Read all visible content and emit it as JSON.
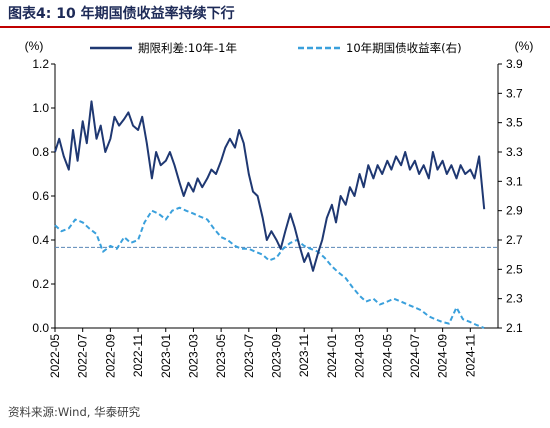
{
  "header": {
    "title": "图表4:  10 年期国债收益率持续下行"
  },
  "footer": {
    "source": "资料来源:Wind, 华泰研究"
  },
  "colors": {
    "series1": "#1f3872",
    "series2": "#3aa0dc",
    "reference": "#5a87b8"
  },
  "chart_data": {
    "type": "line",
    "left_unit": "(%)",
    "right_unit": "(%)",
    "yleft_lim": [
      0.0,
      1.2
    ],
    "yleft_ticks": [
      "0.0",
      "0.2",
      "0.4",
      "0.6",
      "0.8",
      "1.0",
      "1.2"
    ],
    "yright_lim": [
      2.1,
      3.9
    ],
    "yright_ticks": [
      "2.1",
      "2.3",
      "2.5",
      "2.7",
      "2.9",
      "3.1",
      "3.3",
      "3.5",
      "3.7",
      "3.9"
    ],
    "x_range": [
      "2022-05",
      "2024-12"
    ],
    "x_ticks": [
      "2022-05",
      "2022-07",
      "2022-09",
      "2022-11",
      "2023-01",
      "2023-03",
      "2023-05",
      "2023-07",
      "2023-09",
      "2023-11",
      "2024-01",
      "2024-03",
      "2024-05",
      "2024-07",
      "2024-09",
      "2024-11"
    ],
    "reference_line": {
      "axis": "right",
      "value": 2.65
    },
    "series": [
      {
        "name": "期限利差:10年-1年",
        "axis": "left",
        "style": "solid",
        "points": [
          [
            "2022-05-01",
            0.8
          ],
          [
            "2022-05-10",
            0.86
          ],
          [
            "2022-05-20",
            0.78
          ],
          [
            "2022-06-01",
            0.72
          ],
          [
            "2022-06-10",
            0.9
          ],
          [
            "2022-06-20",
            0.76
          ],
          [
            "2022-07-01",
            0.94
          ],
          [
            "2022-07-10",
            0.84
          ],
          [
            "2022-07-20",
            1.03
          ],
          [
            "2022-08-01",
            0.86
          ],
          [
            "2022-08-10",
            0.92
          ],
          [
            "2022-08-20",
            0.8
          ],
          [
            "2022-09-01",
            0.86
          ],
          [
            "2022-09-10",
            0.96
          ],
          [
            "2022-09-20",
            0.92
          ],
          [
            "2022-10-01",
            0.95
          ],
          [
            "2022-10-10",
            0.98
          ],
          [
            "2022-10-20",
            0.92
          ],
          [
            "2022-11-01",
            0.9
          ],
          [
            "2022-11-10",
            0.96
          ],
          [
            "2022-11-20",
            0.84
          ],
          [
            "2022-12-01",
            0.68
          ],
          [
            "2022-12-10",
            0.8
          ],
          [
            "2022-12-20",
            0.74
          ],
          [
            "2023-01-01",
            0.76
          ],
          [
            "2023-01-10",
            0.8
          ],
          [
            "2023-01-20",
            0.74
          ],
          [
            "2023-02-01",
            0.66
          ],
          [
            "2023-02-10",
            0.6
          ],
          [
            "2023-02-20",
            0.66
          ],
          [
            "2023-03-01",
            0.62
          ],
          [
            "2023-03-10",
            0.68
          ],
          [
            "2023-03-20",
            0.64
          ],
          [
            "2023-04-01",
            0.68
          ],
          [
            "2023-04-10",
            0.72
          ],
          [
            "2023-04-20",
            0.7
          ],
          [
            "2023-05-01",
            0.76
          ],
          [
            "2023-05-10",
            0.82
          ],
          [
            "2023-05-20",
            0.86
          ],
          [
            "2023-06-01",
            0.82
          ],
          [
            "2023-06-10",
            0.9
          ],
          [
            "2023-06-20",
            0.84
          ],
          [
            "2023-07-01",
            0.7
          ],
          [
            "2023-07-10",
            0.62
          ],
          [
            "2023-07-20",
            0.6
          ],
          [
            "2023-08-01",
            0.5
          ],
          [
            "2023-08-10",
            0.4
          ],
          [
            "2023-08-20",
            0.44
          ],
          [
            "2023-09-01",
            0.4
          ],
          [
            "2023-09-10",
            0.36
          ],
          [
            "2023-09-20",
            0.44
          ],
          [
            "2023-10-01",
            0.52
          ],
          [
            "2023-10-10",
            0.46
          ],
          [
            "2023-10-20",
            0.38
          ],
          [
            "2023-11-01",
            0.3
          ],
          [
            "2023-11-10",
            0.34
          ],
          [
            "2023-11-20",
            0.26
          ],
          [
            "2023-12-01",
            0.34
          ],
          [
            "2023-12-10",
            0.4
          ],
          [
            "2023-12-20",
            0.5
          ],
          [
            "2024-01-01",
            0.56
          ],
          [
            "2024-01-10",
            0.48
          ],
          [
            "2024-01-20",
            0.6
          ],
          [
            "2024-02-01",
            0.56
          ],
          [
            "2024-02-10",
            0.64
          ],
          [
            "2024-02-20",
            0.6
          ],
          [
            "2024-03-01",
            0.7
          ],
          [
            "2024-03-10",
            0.64
          ],
          [
            "2024-03-20",
            0.74
          ],
          [
            "2024-04-01",
            0.68
          ],
          [
            "2024-04-10",
            0.74
          ],
          [
            "2024-04-20",
            0.7
          ],
          [
            "2024-05-01",
            0.76
          ],
          [
            "2024-05-10",
            0.72
          ],
          [
            "2024-05-20",
            0.78
          ],
          [
            "2024-06-01",
            0.74
          ],
          [
            "2024-06-10",
            0.8
          ],
          [
            "2024-06-20",
            0.72
          ],
          [
            "2024-07-01",
            0.76
          ],
          [
            "2024-07-10",
            0.7
          ],
          [
            "2024-07-20",
            0.74
          ],
          [
            "2024-08-01",
            0.68
          ],
          [
            "2024-08-10",
            0.8
          ],
          [
            "2024-08-20",
            0.72
          ],
          [
            "2024-09-01",
            0.76
          ],
          [
            "2024-09-10",
            0.7
          ],
          [
            "2024-09-20",
            0.74
          ],
          [
            "2024-10-01",
            0.68
          ],
          [
            "2024-10-10",
            0.74
          ],
          [
            "2024-10-20",
            0.7
          ],
          [
            "2024-11-01",
            0.72
          ],
          [
            "2024-11-10",
            0.68
          ],
          [
            "2024-11-20",
            0.78
          ],
          [
            "2024-12-01",
            0.54
          ]
        ]
      },
      {
        "name": "10年期国债收益率(右)",
        "axis": "right",
        "style": "dashed",
        "points": [
          [
            "2022-05-01",
            2.8
          ],
          [
            "2022-05-15",
            2.76
          ],
          [
            "2022-06-01",
            2.78
          ],
          [
            "2022-06-15",
            2.84
          ],
          [
            "2022-07-01",
            2.82
          ],
          [
            "2022-07-15",
            2.78
          ],
          [
            "2022-08-01",
            2.74
          ],
          [
            "2022-08-15",
            2.62
          ],
          [
            "2022-09-01",
            2.66
          ],
          [
            "2022-09-15",
            2.64
          ],
          [
            "2022-10-01",
            2.72
          ],
          [
            "2022-10-15",
            2.68
          ],
          [
            "2022-11-01",
            2.7
          ],
          [
            "2022-11-15",
            2.82
          ],
          [
            "2022-12-01",
            2.9
          ],
          [
            "2022-12-15",
            2.88
          ],
          [
            "2023-01-01",
            2.84
          ],
          [
            "2023-01-15",
            2.9
          ],
          [
            "2023-02-01",
            2.92
          ],
          [
            "2023-02-15",
            2.9
          ],
          [
            "2023-03-01",
            2.88
          ],
          [
            "2023-03-15",
            2.86
          ],
          [
            "2023-04-01",
            2.84
          ],
          [
            "2023-04-15",
            2.78
          ],
          [
            "2023-05-01",
            2.72
          ],
          [
            "2023-05-15",
            2.7
          ],
          [
            "2023-06-01",
            2.66
          ],
          [
            "2023-06-15",
            2.64
          ],
          [
            "2023-07-01",
            2.64
          ],
          [
            "2023-07-15",
            2.62
          ],
          [
            "2023-08-01",
            2.6
          ],
          [
            "2023-08-15",
            2.56
          ],
          [
            "2023-09-01",
            2.58
          ],
          [
            "2023-09-15",
            2.64
          ],
          [
            "2023-10-01",
            2.68
          ],
          [
            "2023-10-15",
            2.7
          ],
          [
            "2023-11-01",
            2.66
          ],
          [
            "2023-11-15",
            2.64
          ],
          [
            "2023-12-01",
            2.62
          ],
          [
            "2023-12-15",
            2.58
          ],
          [
            "2024-01-01",
            2.52
          ],
          [
            "2024-01-15",
            2.48
          ],
          [
            "2024-02-01",
            2.44
          ],
          [
            "2024-02-15",
            2.38
          ],
          [
            "2024-03-01",
            2.32
          ],
          [
            "2024-03-15",
            2.28
          ],
          [
            "2024-04-01",
            2.3
          ],
          [
            "2024-04-15",
            2.26
          ],
          [
            "2024-05-01",
            2.28
          ],
          [
            "2024-05-15",
            2.3
          ],
          [
            "2024-06-01",
            2.28
          ],
          [
            "2024-06-15",
            2.26
          ],
          [
            "2024-07-01",
            2.24
          ],
          [
            "2024-07-15",
            2.22
          ],
          [
            "2024-08-01",
            2.18
          ],
          [
            "2024-08-15",
            2.16
          ],
          [
            "2024-09-01",
            2.14
          ],
          [
            "2024-09-15",
            2.13
          ],
          [
            "2024-10-01",
            2.24
          ],
          [
            "2024-10-15",
            2.16
          ],
          [
            "2024-11-01",
            2.14
          ],
          [
            "2024-11-15",
            2.12
          ],
          [
            "2024-12-01",
            2.1
          ]
        ]
      }
    ]
  }
}
